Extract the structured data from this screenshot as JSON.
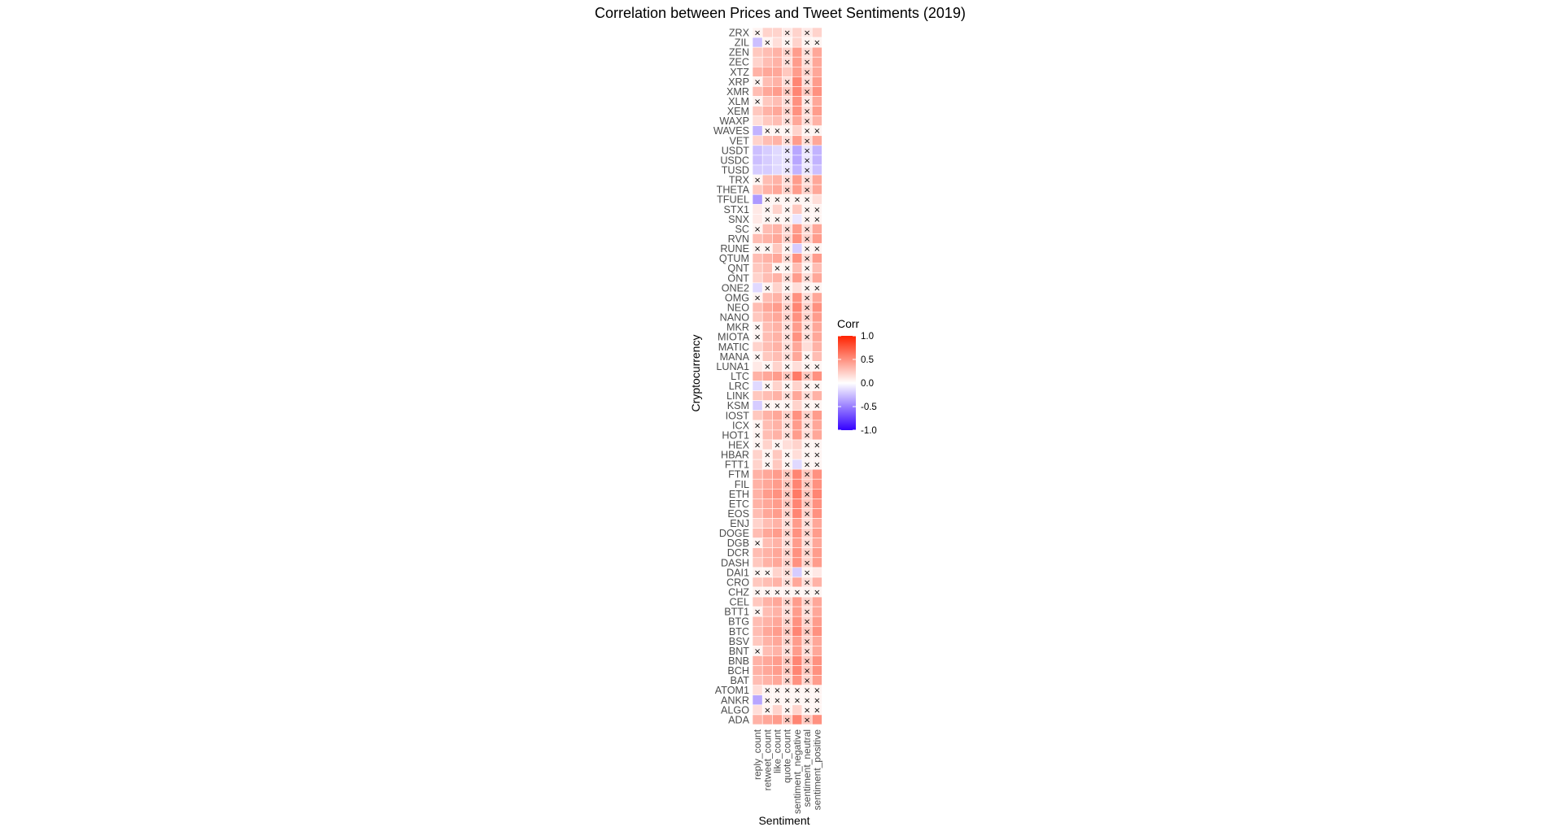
{
  "chart_data": {
    "type": "heatmap",
    "title": "Correlation between Prices and Tweet Sentiments (2019)",
    "xlabel": "Sentiment",
    "ylabel": "Cryptocurrency",
    "x": [
      "reply_count",
      "retweet_count",
      "like_count",
      "quote_count",
      "sentiment_negative",
      "sentiment_neutral",
      "sentiment_positive"
    ],
    "y": [
      "ZRX",
      "ZIL",
      "ZEN",
      "ZEC",
      "XTZ",
      "XRP",
      "XMR",
      "XLM",
      "XEM",
      "WAXP",
      "WAVES",
      "VET",
      "USDT",
      "USDC",
      "TUSD",
      "TRX",
      "THETA",
      "TFUEL",
      "STX1",
      "SNX",
      "SC",
      "RVN",
      "RUNE",
      "QTUM",
      "QNT",
      "ONT",
      "ONE2",
      "OMG",
      "NEO",
      "NANO",
      "MKR",
      "MIOTA",
      "MATIC",
      "MANA",
      "LUNA1",
      "LTC",
      "LRC",
      "LINK",
      "KSM",
      "IOST",
      "ICX",
      "HOT1",
      "HEX",
      "HBAR",
      "FTT1",
      "FTM",
      "FIL",
      "ETH",
      "ETC",
      "EOS",
      "ENJ",
      "DOGE",
      "DGB",
      "DCR",
      "DASH",
      "DAI1",
      "CRO",
      "CHZ",
      "CEL",
      "BTT1",
      "BTG",
      "BTC",
      "BSV",
      "BNT",
      "BNB",
      "BCH",
      "BAT",
      "ATOM1",
      "ANKR",
      "ALGO",
      "ADA"
    ],
    "values": [
      [
        0.05,
        0.2,
        0.2,
        0.1,
        0.2,
        0.1,
        0.2
      ],
      [
        -0.25,
        0.05,
        0.15,
        0.05,
        0.2,
        0.05,
        0.05
      ],
      [
        0.25,
        0.3,
        0.35,
        0.2,
        0.45,
        0.15,
        0.4
      ],
      [
        0.2,
        0.3,
        0.35,
        0.15,
        0.45,
        0.15,
        0.4
      ],
      [
        0.35,
        0.4,
        0.4,
        0.25,
        0.45,
        0.2,
        0.4
      ],
      [
        0.05,
        0.3,
        0.35,
        0.15,
        0.55,
        0.15,
        0.45
      ],
      [
        0.3,
        0.4,
        0.45,
        0.25,
        0.55,
        0.25,
        0.5
      ],
      [
        0.05,
        0.25,
        0.3,
        0.15,
        0.5,
        0.1,
        0.4
      ],
      [
        0.25,
        0.35,
        0.4,
        0.2,
        0.5,
        0.15,
        0.45
      ],
      [
        0.15,
        0.25,
        0.3,
        0.15,
        0.4,
        0.15,
        0.35
      ],
      [
        -0.3,
        0.05,
        0.05,
        0.05,
        0.2,
        0.05,
        0.05
      ],
      [
        0.2,
        0.3,
        0.35,
        0.15,
        0.45,
        0.15,
        0.4
      ],
      [
        -0.25,
        -0.2,
        -0.15,
        -0.1,
        -0.35,
        -0.1,
        -0.3
      ],
      [
        -0.25,
        -0.2,
        -0.15,
        -0.1,
        -0.35,
        -0.1,
        -0.3
      ],
      [
        -0.2,
        -0.2,
        -0.15,
        -0.1,
        -0.3,
        -0.1,
        -0.25
      ],
      [
        0.05,
        0.3,
        0.35,
        0.15,
        0.45,
        0.15,
        0.4
      ],
      [
        0.25,
        0.35,
        0.4,
        0.2,
        0.45,
        0.2,
        0.4
      ],
      [
        -0.4,
        0.05,
        0.05,
        0.05,
        0.05,
        0.05,
        0.15
      ],
      [
        0.1,
        0.05,
        0.2,
        0.05,
        0.25,
        0.05,
        0.05
      ],
      [
        0.1,
        0.05,
        0.05,
        0.05,
        -0.1,
        0.05,
        0.05
      ],
      [
        0.05,
        0.3,
        0.35,
        0.15,
        0.45,
        0.15,
        0.4
      ],
      [
        0.3,
        0.35,
        0.4,
        0.2,
        0.5,
        0.2,
        0.45
      ],
      [
        0.05,
        0.05,
        0.25,
        0.05,
        -0.2,
        0.05,
        0.05
      ],
      [
        0.3,
        0.35,
        0.4,
        0.15,
        0.5,
        0.15,
        0.45
      ],
      [
        0.25,
        0.3,
        0.05,
        0.05,
        0.3,
        0.05,
        0.3
      ],
      [
        0.2,
        0.3,
        0.35,
        0.15,
        0.45,
        0.15,
        0.4
      ],
      [
        -0.15,
        0.05,
        0.2,
        0.05,
        0.15,
        0.05,
        0.05
      ],
      [
        0.05,
        0.3,
        0.35,
        0.15,
        0.5,
        0.15,
        0.4
      ],
      [
        0.3,
        0.4,
        0.45,
        0.2,
        0.55,
        0.2,
        0.5
      ],
      [
        0.25,
        0.35,
        0.4,
        0.2,
        0.5,
        0.2,
        0.45
      ],
      [
        0.05,
        0.3,
        0.35,
        0.15,
        0.45,
        0.15,
        0.4
      ],
      [
        0.05,
        0.3,
        0.35,
        0.15,
        0.5,
        0.15,
        0.4
      ],
      [
        0.2,
        0.3,
        0.35,
        0.15,
        0.4,
        0.15,
        0.35
      ],
      [
        0.05,
        0.25,
        0.3,
        0.15,
        0.4,
        0.05,
        0.3
      ],
      [
        0.1,
        0.05,
        0.2,
        0.05,
        0.15,
        0.05,
        0.05
      ],
      [
        0.35,
        0.4,
        0.45,
        0.25,
        0.6,
        0.25,
        0.5
      ],
      [
        -0.15,
        0.05,
        0.2,
        0.05,
        0.2,
        0.05,
        0.05
      ],
      [
        0.25,
        0.3,
        0.35,
        0.15,
        0.4,
        0.15,
        0.35
      ],
      [
        -0.2,
        0.05,
        0.05,
        0.05,
        0.2,
        0.05,
        0.05
      ],
      [
        0.25,
        0.35,
        0.4,
        0.2,
        0.5,
        0.2,
        0.45
      ],
      [
        0.05,
        0.3,
        0.35,
        0.15,
        0.45,
        0.15,
        0.4
      ],
      [
        0.05,
        0.3,
        0.35,
        0.15,
        0.45,
        0.15,
        0.4
      ],
      [
        0.05,
        0.2,
        0.05,
        0.15,
        0.2,
        0.05,
        0.05
      ],
      [
        0.2,
        0.05,
        0.25,
        0.05,
        0.15,
        0.05,
        0.05
      ],
      [
        0.2,
        0.05,
        0.25,
        0.05,
        -0.15,
        0.05,
        0.05
      ],
      [
        0.35,
        0.4,
        0.45,
        0.25,
        0.55,
        0.25,
        0.5
      ],
      [
        0.35,
        0.4,
        0.45,
        0.25,
        0.55,
        0.25,
        0.5
      ],
      [
        0.35,
        0.45,
        0.5,
        0.25,
        0.6,
        0.25,
        0.55
      ],
      [
        0.35,
        0.4,
        0.45,
        0.25,
        0.55,
        0.25,
        0.5
      ],
      [
        0.3,
        0.4,
        0.45,
        0.2,
        0.55,
        0.2,
        0.5
      ],
      [
        0.2,
        0.3,
        0.35,
        0.15,
        0.45,
        0.15,
        0.4
      ],
      [
        0.3,
        0.4,
        0.45,
        0.2,
        0.5,
        0.2,
        0.45
      ],
      [
        0.05,
        0.3,
        0.35,
        0.15,
        0.45,
        0.15,
        0.4
      ],
      [
        0.3,
        0.35,
        0.4,
        0.2,
        0.5,
        0.2,
        0.45
      ],
      [
        0.25,
        0.35,
        0.4,
        0.2,
        0.5,
        0.2,
        0.45
      ],
      [
        0.05,
        0.05,
        0.2,
        0.15,
        -0.2,
        0.05,
        0.1
      ],
      [
        0.25,
        0.3,
        0.35,
        0.15,
        0.4,
        0.15,
        0.35
      ],
      [
        0.05,
        0.05,
        0.05,
        0.05,
        0.05,
        0.05,
        0.05
      ],
      [
        0.25,
        0.35,
        0.4,
        0.2,
        0.45,
        0.2,
        0.4
      ],
      [
        0.05,
        0.3,
        0.35,
        0.15,
        0.45,
        0.15,
        0.4
      ],
      [
        0.3,
        0.35,
        0.4,
        0.2,
        0.5,
        0.2,
        0.45
      ],
      [
        0.3,
        0.4,
        0.45,
        0.25,
        0.55,
        0.25,
        0.5
      ],
      [
        0.25,
        0.35,
        0.4,
        0.2,
        0.45,
        0.2,
        0.4
      ],
      [
        0.05,
        0.3,
        0.35,
        0.15,
        0.45,
        0.15,
        0.4
      ],
      [
        0.35,
        0.4,
        0.45,
        0.25,
        0.55,
        0.25,
        0.5
      ],
      [
        0.35,
        0.4,
        0.45,
        0.25,
        0.55,
        0.25,
        0.5
      ],
      [
        0.3,
        0.35,
        0.4,
        0.2,
        0.5,
        0.2,
        0.45
      ],
      [
        0.15,
        0.05,
        0.05,
        0.05,
        0.05,
        0.05,
        0.05
      ],
      [
        -0.35,
        0.05,
        0.05,
        0.05,
        0.05,
        0.05,
        0.05
      ],
      [
        0.15,
        0.05,
        0.2,
        0.05,
        0.2,
        0.05,
        0.05
      ],
      [
        0.35,
        0.4,
        0.45,
        0.25,
        0.55,
        0.25,
        0.5
      ]
    ],
    "not_significant": [
      [
        0,
        3,
        5
      ],
      [
        1,
        3,
        5,
        6
      ],
      [
        3,
        5
      ],
      [
        3,
        5
      ],
      [
        5
      ],
      [
        0,
        3,
        5
      ],
      [
        3,
        5
      ],
      [
        0,
        3,
        5
      ],
      [
        3,
        5
      ],
      [
        3,
        5
      ],
      [
        1,
        2,
        3,
        5,
        6
      ],
      [
        3,
        5
      ],
      [
        3,
        5
      ],
      [
        3,
        5
      ],
      [
        3,
        5
      ],
      [
        0,
        3,
        5
      ],
      [
        3,
        5
      ],
      [
        1,
        2,
        3,
        4,
        5
      ],
      [
        1,
        3,
        5,
        6
      ],
      [
        1,
        2,
        3,
        5,
        6
      ],
      [
        0,
        3,
        5
      ],
      [
        3,
        5
      ],
      [
        0,
        1,
        3,
        5,
        6
      ],
      [
        3,
        5
      ],
      [
        2,
        3,
        5
      ],
      [
        3,
        5
      ],
      [
        1,
        3,
        5,
        6
      ],
      [
        0,
        3,
        5
      ],
      [
        3,
        5
      ],
      [
        3,
        5
      ],
      [
        0,
        3,
        5
      ],
      [
        0,
        3,
        5
      ],
      [
        3
      ],
      [
        0,
        3,
        5
      ],
      [
        1,
        3,
        5,
        6
      ],
      [
        3,
        5
      ],
      [
        1,
        3,
        5,
        6
      ],
      [
        3,
        5
      ],
      [
        1,
        2,
        3,
        5,
        6
      ],
      [
        3,
        5
      ],
      [
        0,
        3,
        5
      ],
      [
        0,
        3,
        5
      ],
      [
        0,
        2,
        5,
        6
      ],
      [
        1,
        3,
        5,
        6
      ],
      [
        1,
        3,
        5,
        6
      ],
      [
        3,
        5
      ],
      [
        3,
        5
      ],
      [
        3,
        5
      ],
      [
        3,
        5
      ],
      [
        3,
        5
      ],
      [
        3,
        5
      ],
      [
        3,
        5
      ],
      [
        0,
        3,
        5
      ],
      [
        3,
        5
      ],
      [
        3,
        5
      ],
      [
        0,
        1,
        3,
        5
      ],
      [
        3,
        5
      ],
      [
        0,
        1,
        2,
        3,
        4,
        5,
        6
      ],
      [
        3,
        5
      ],
      [
        0,
        3,
        5
      ],
      [
        3,
        5
      ],
      [
        3,
        5
      ],
      [
        3,
        5
      ],
      [
        0,
        3,
        5
      ],
      [
        3,
        5
      ],
      [
        3,
        5
      ],
      [
        3,
        5
      ],
      [
        1,
        2,
        3,
        4,
        5,
        6
      ],
      [
        1,
        2,
        3,
        4,
        5,
        6
      ],
      [
        1,
        3,
        5,
        6
      ],
      [
        3,
        5
      ]
    ],
    "marker": "×",
    "legend": {
      "title": "Corr",
      "position": "right",
      "ticks": [
        "1.0",
        "0.5",
        "0.0",
        "-0.5",
        "-1.0"
      ],
      "range": [
        -1,
        1
      ],
      "colors": {
        "low": "#3300ff",
        "mid": "#ffffff",
        "high": "#ff2200"
      }
    },
    "grid": false
  }
}
